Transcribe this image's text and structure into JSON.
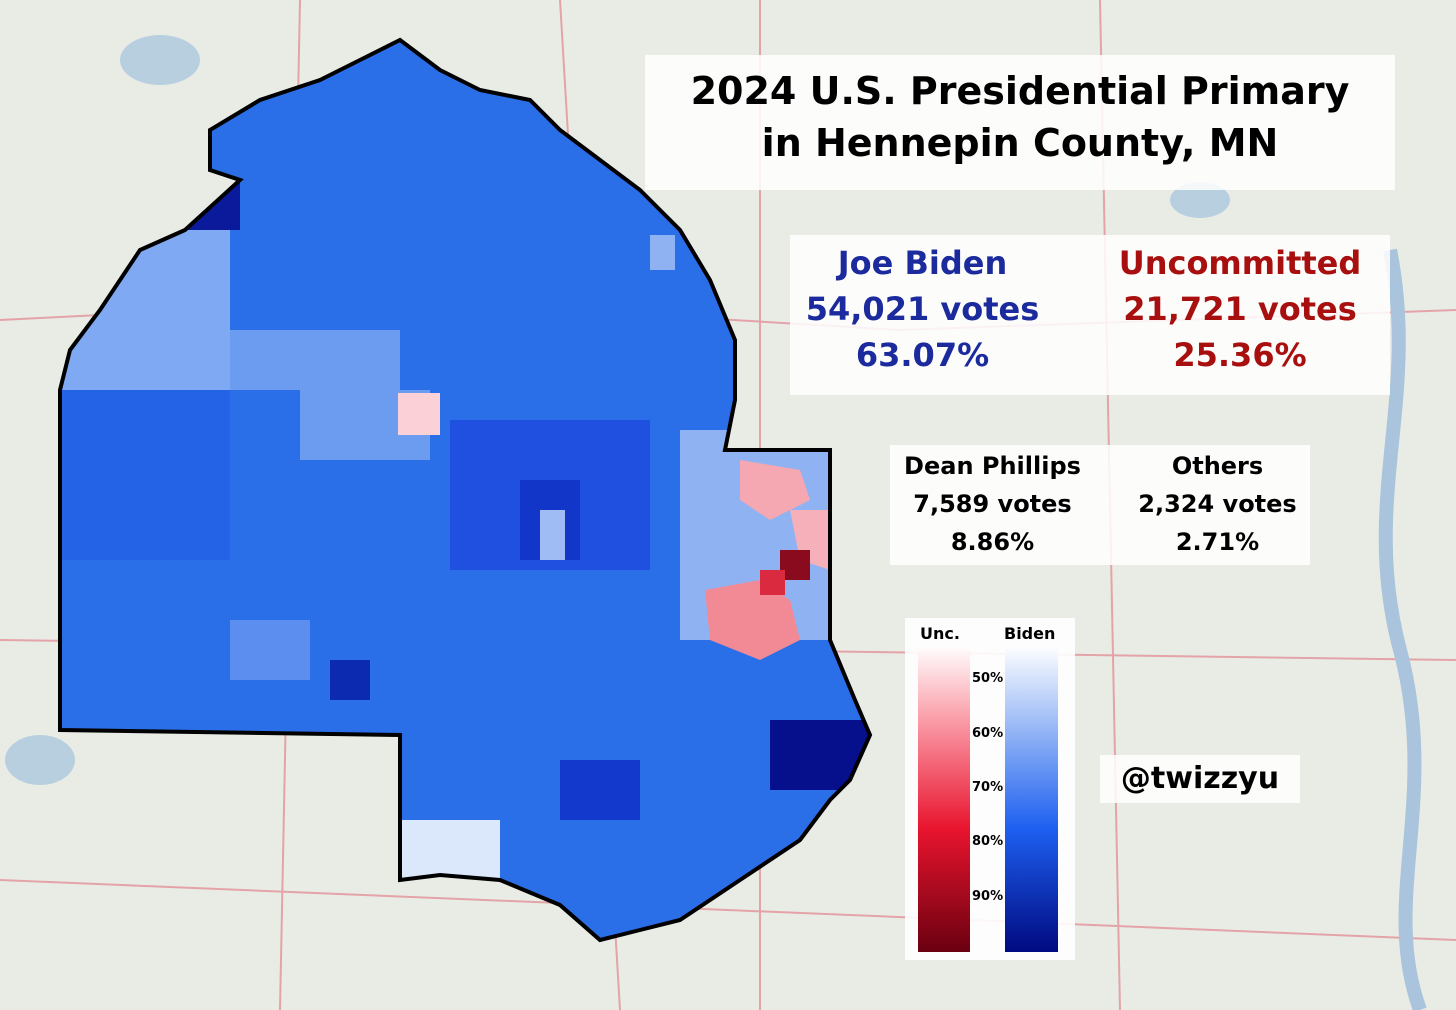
{
  "title": {
    "line1": "2024 U.S. Presidential Primary",
    "line2": "in Hennepin County, MN"
  },
  "candidates": [
    {
      "name": "Joe Biden",
      "votes": "54,021 votes",
      "percent": "63.07%"
    },
    {
      "name": "Uncommitted",
      "votes": "21,721 votes",
      "percent": "25.36%"
    },
    {
      "name": "Dean Phillips",
      "votes": "7,589 votes",
      "percent": "8.86%"
    },
    {
      "name": "Others",
      "votes": "2,324 votes",
      "percent": "2.71%"
    }
  ],
  "legend": {
    "uncommitted_label": "Unc.",
    "biden_label": "Biden",
    "ticks": [
      "50%",
      "60%",
      "70%",
      "80%",
      "90%"
    ]
  },
  "credit": "@twizzyu"
}
